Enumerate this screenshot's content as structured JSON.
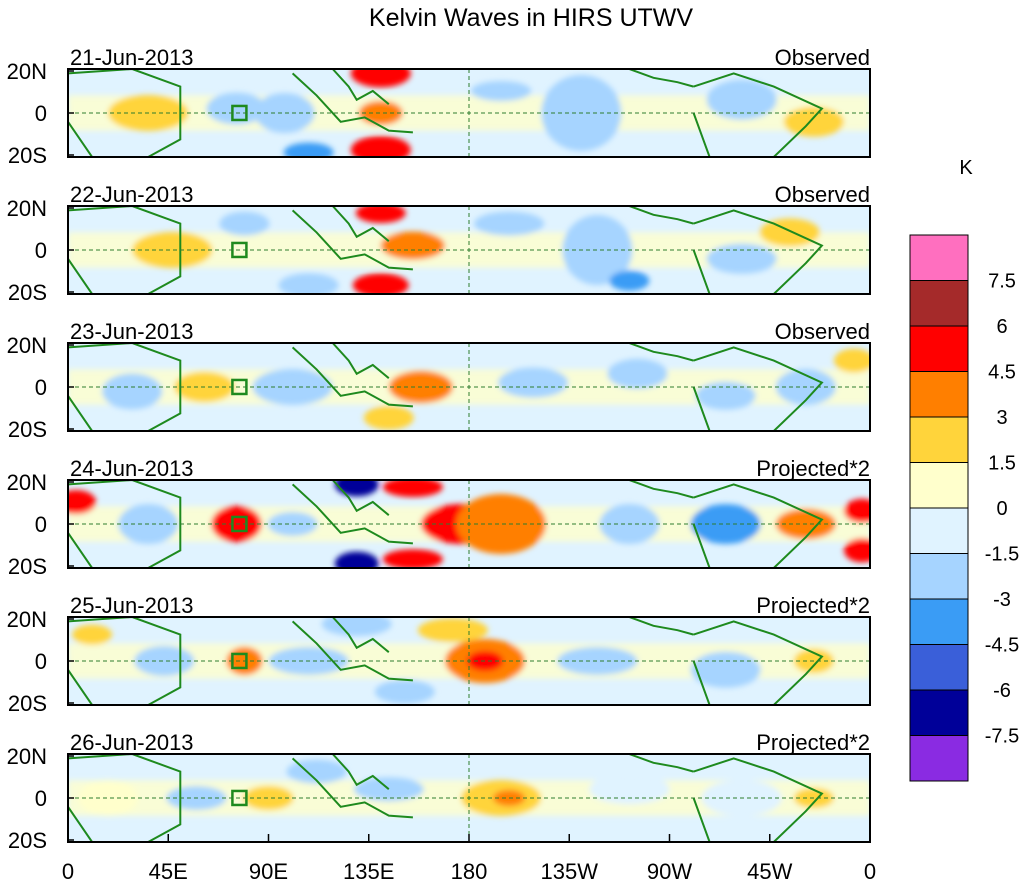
{
  "title": "Kelvin Waves in HIRS UTWV",
  "colorbar": {
    "unit": "K",
    "levels": [
      "7.5",
      "6",
      "4.5",
      "3",
      "1.5",
      "0",
      "-1.5",
      "-3",
      "-4.5",
      "-6",
      "-7.5"
    ],
    "colors": [
      "#ff6fbf",
      "#a52a2a",
      "#ff0000",
      "#ff7f00",
      "#ffd43b",
      "#ffffcc",
      "#e0f3ff",
      "#a6d4ff",
      "#3a9cf5",
      "#3a5fd9",
      "#000099",
      "#8a2be2"
    ]
  },
  "x_axis": {
    "ticks": [
      "0",
      "45E",
      "90E",
      "135E",
      "180",
      "135W",
      "90W",
      "45W",
      "0"
    ]
  },
  "y_axis": {
    "ticks": [
      "20N",
      "0",
      "20S"
    ]
  },
  "panels": [
    {
      "date": "21-Jun-2013",
      "kind": "Observed"
    },
    {
      "date": "22-Jun-2013",
      "kind": "Observed"
    },
    {
      "date": "23-Jun-2013",
      "kind": "Observed"
    },
    {
      "date": "24-Jun-2013",
      "kind": "Projected*2"
    },
    {
      "date": "25-Jun-2013",
      "kind": "Projected*2"
    },
    {
      "date": "26-Jun-2013",
      "kind": "Projected*2"
    }
  ],
  "colors": {
    "coastline": "#1e8a1e",
    "grid": "#2e7d2e",
    "frame": "#000000"
  }
}
